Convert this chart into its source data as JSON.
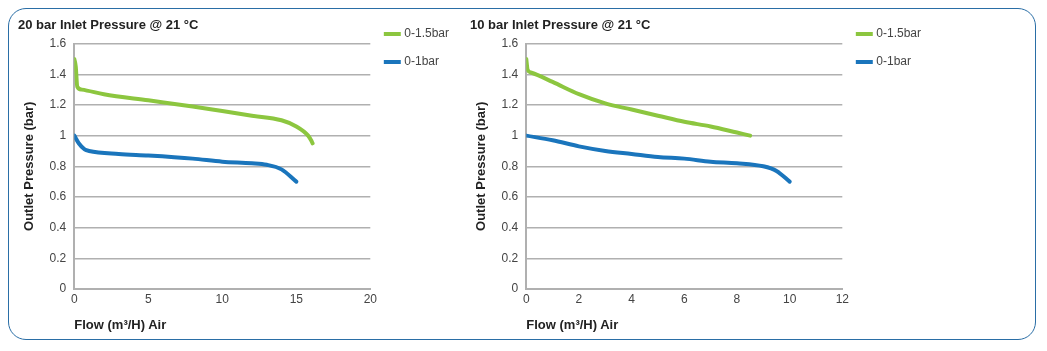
{
  "chart_data": [
    {
      "type": "line",
      "title": "20 bar Inlet Pressure @ 21 °C",
      "xlabel": "Flow (m³/H) Air",
      "ylabel": "Outlet Pressure (bar)",
      "xlim": [
        0,
        20
      ],
      "xticks": [
        0,
        5,
        10,
        15,
        20
      ],
      "ylim": [
        0,
        1.6
      ],
      "yticks": [
        0,
        0.2,
        0.4,
        0.6,
        0.8,
        1,
        1.2,
        1.4,
        1.6
      ],
      "grid": "y",
      "legend": "top right",
      "marker": "none",
      "line_style": "solid",
      "series": [
        {
          "name": "0-1.5bar",
          "color": "#8cc63f",
          "x": [
            0,
            0.1,
            0.2,
            0.5,
            2,
            5,
            8,
            10,
            12,
            14,
            15,
            15.8,
            16,
            16.1
          ],
          "values": [
            1.5,
            1.45,
            1.32,
            1.3,
            1.27,
            1.23,
            1.19,
            1.16,
            1.13,
            1.1,
            1.06,
            1.0,
            0.97,
            0.95
          ]
        },
        {
          "name": "0-1bar",
          "color": "#1a75bc",
          "x": [
            0,
            0.3,
            0.7,
            1,
            3,
            5,
            8,
            10,
            12,
            13,
            14,
            15
          ],
          "values": [
            1.0,
            0.95,
            0.91,
            0.9,
            0.88,
            0.87,
            0.85,
            0.83,
            0.82,
            0.81,
            0.78,
            0.7
          ]
        }
      ]
    },
    {
      "type": "line",
      "title": "10 bar Inlet Pressure @ 21 °C",
      "xlabel": "Flow (m³/H) Air",
      "ylabel": "Outlet Pressure (bar)",
      "xlim": [
        0,
        12
      ],
      "xticks": [
        0,
        2,
        4,
        6,
        8,
        10,
        12
      ],
      "ylim": [
        0,
        1.6
      ],
      "yticks": [
        0,
        0.2,
        0.4,
        0.6,
        0.8,
        1,
        1.2,
        1.4,
        1.6
      ],
      "grid": "y",
      "legend": "top right",
      "marker": "none",
      "line_style": "solid",
      "series": [
        {
          "name": "0-1.5bar",
          "color": "#8cc63f",
          "x": [
            0,
            0.05,
            0.2,
            1,
            2,
            3,
            4,
            5,
            6,
            7,
            8,
            8.5
          ],
          "values": [
            1.5,
            1.43,
            1.41,
            1.35,
            1.27,
            1.21,
            1.17,
            1.13,
            1.09,
            1.06,
            1.02,
            1.0
          ]
        },
        {
          "name": "0-1bar",
          "color": "#1a75bc",
          "x": [
            0,
            1,
            2,
            3,
            4,
            5,
            6,
            7,
            8,
            9,
            9.5,
            10
          ],
          "values": [
            1.0,
            0.97,
            0.93,
            0.9,
            0.88,
            0.86,
            0.85,
            0.83,
            0.82,
            0.8,
            0.77,
            0.7
          ]
        }
      ]
    }
  ]
}
